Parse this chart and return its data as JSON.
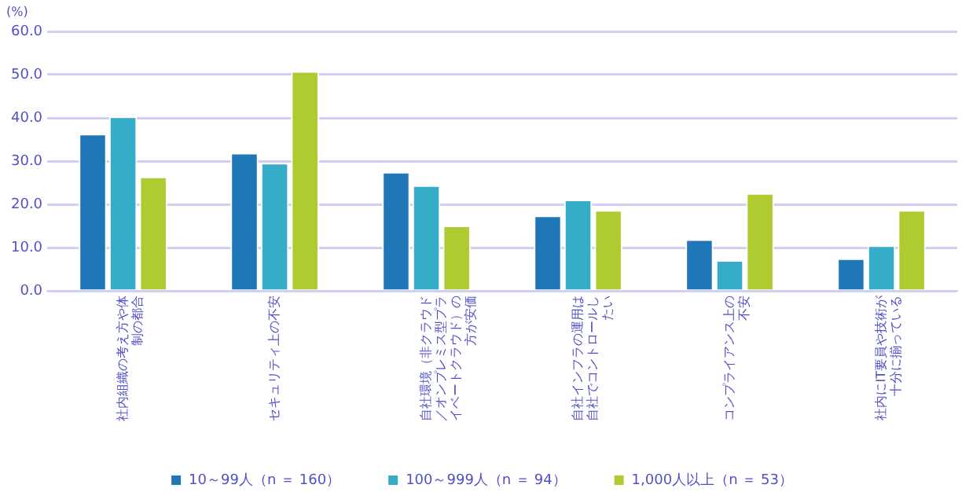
{
  "chart_data": {
    "type": "bar",
    "ylabel": "(%)",
    "categories": [
      "社内組織の考え方や体制の都合",
      "セキュリティ上の不安",
      "自社環境（非クラウド／オンプレミス型プライベートクラウド）の方が安価",
      "自社インフラの運用は自社でコントロールしたい",
      "コンプライアンス上の不安",
      "社内にIT要員や技術が十分に揃っている"
    ],
    "series": [
      {
        "name": "10～99人（n ＝ 160）",
        "color": "#1f77b8",
        "values": [
          36.3,
          31.9,
          27.5,
          17.4,
          11.9,
          7.5
        ]
      },
      {
        "name": "100～999人（n ＝ 94）",
        "color": "#36adc8",
        "values": [
          40.3,
          29.6,
          24.4,
          21.1,
          7.1,
          10.5
        ]
      },
      {
        "name": "1,000人以上（n ＝ 53）",
        "color": "#aecb2f",
        "values": [
          26.4,
          50.8,
          15.1,
          18.7,
          22.6,
          18.7
        ]
      }
    ],
    "ylim": [
      0,
      60
    ],
    "yticks": [
      {
        "value": 0,
        "label": "0.0"
      },
      {
        "value": 10,
        "label": "10.0"
      },
      {
        "value": 20,
        "label": "20.0"
      },
      {
        "value": 30,
        "label": "30.0"
      },
      {
        "value": 40,
        "label": "40.0"
      },
      {
        "value": 50,
        "label": "50.0"
      },
      {
        "value": 60,
        "label": "60.0"
      }
    ],
    "grid": "y",
    "legend": "bottom"
  }
}
